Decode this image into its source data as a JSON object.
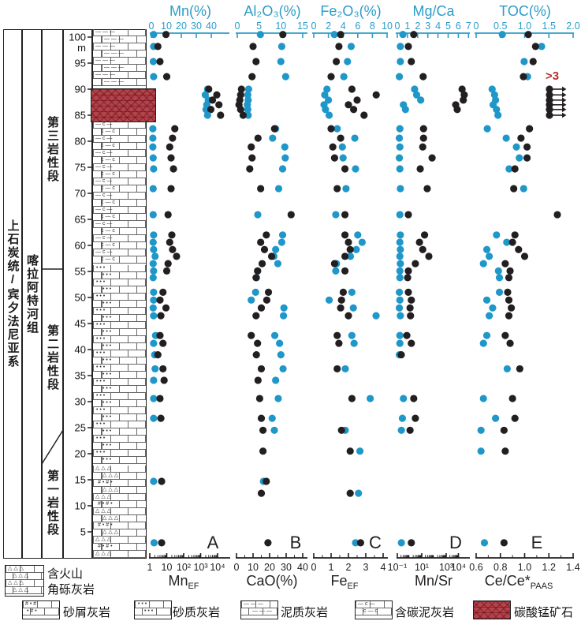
{
  "header": {
    "system": "上石炭统/宾夕法尼亚系",
    "formation": "喀拉阿特河组",
    "members": [
      {
        "label": "第三岩性段"
      },
      {
        "label": "第二岩性段"
      },
      {
        "label": "第一岩性段"
      }
    ],
    "depth_unit": "m",
    "depth_ticks": [
      100,
      95,
      90,
      85,
      80,
      75,
      70,
      65,
      60,
      55,
      50,
      45,
      40,
      35,
      30,
      25,
      20,
      15,
      10,
      5
    ]
  },
  "colors": {
    "axis_cyan": "#2b9dc9",
    "dot_blue": "#1f97c9",
    "dot_black": "#231f20",
    "ore_red": "#b4434b",
    "offscale_red": "#b3322e"
  },
  "annotations": {
    "offscale": ">3"
  },
  "panels": [
    {
      "letter": "A",
      "top": {
        "title": "Mn(%)",
        "ticks": [
          {
            "v": 0,
            "label": "0"
          },
          {
            "v": 10,
            "label": "10"
          },
          {
            "v": 20,
            "label": "20"
          },
          {
            "v": 30,
            "label": "30"
          },
          {
            "v": 40,
            "label": "40"
          }
        ]
      },
      "bottom": {
        "title": "Mn",
        "title_sub": "EF",
        "scale": "log",
        "ticks": [
          {
            "dec": 0,
            "label": "1"
          },
          {
            "dec": 1,
            "label": "10"
          },
          {
            "dec": 2,
            "label": "10²"
          },
          {
            "dec": 3,
            "label": "10³"
          },
          {
            "dec": 4,
            "label": "10⁴"
          }
        ]
      }
    },
    {
      "letter": "B",
      "top": {
        "title": "Al₂O₃(%)",
        "ticks": [
          {
            "v": 0,
            "label": "0"
          },
          {
            "v": 5,
            "label": "5"
          },
          {
            "v": 10,
            "label": "10"
          },
          {
            "v": 15,
            "label": "15"
          }
        ]
      },
      "bottom": {
        "title": "CaO(%)",
        "scale": "linear",
        "ticks": [
          {
            "v": 0,
            "label": "0"
          },
          {
            "v": 10,
            "label": "10"
          },
          {
            "v": 20,
            "label": "20"
          },
          {
            "v": 30,
            "label": "30"
          },
          {
            "v": 40,
            "label": "40"
          }
        ]
      }
    },
    {
      "letter": "C",
      "top": {
        "title": "Fe₂O₃(%)",
        "ticks": [
          {
            "v": 0,
            "label": "0"
          },
          {
            "v": 2,
            "label": "2"
          },
          {
            "v": 4,
            "label": "4"
          },
          {
            "v": 6,
            "label": "6"
          },
          {
            "v": 8,
            "label": "8"
          },
          {
            "v": 10,
            "label": "10"
          }
        ]
      },
      "bottom": {
        "title": "Fe",
        "title_sub": "EF",
        "scale": "linear",
        "ticks": [
          {
            "v": 0,
            "label": "0"
          },
          {
            "v": 1,
            "label": "1"
          },
          {
            "v": 2,
            "label": "2"
          },
          {
            "v": 3,
            "label": "3"
          },
          {
            "v": 4,
            "label": "4"
          }
        ]
      }
    },
    {
      "letter": "D",
      "top": {
        "title": "Mg/Ca",
        "ticks": [
          {
            "v": 0,
            "label": "0"
          },
          {
            "v": 1,
            "label": "1"
          },
          {
            "v": 2,
            "label": "2"
          },
          {
            "v": 3,
            "label": "3"
          },
          {
            "v": 4,
            "label": "4"
          },
          {
            "v": 5,
            "label": "5"
          },
          {
            "v": 6,
            "label": "6"
          },
          {
            "v": 7,
            "label": "7"
          }
        ]
      },
      "bottom": {
        "title": "Mn/Sr",
        "scale": "log",
        "ticks": [
          {
            "dec": 0,
            "label": "10⁻¹"
          },
          {
            "dec": 2,
            "label": "10¹"
          },
          {
            "dec": 4,
            "label": "10³"
          },
          {
            "dec": 5,
            "label": "10⁴"
          }
        ]
      }
    },
    {
      "letter": "E",
      "top": {
        "title": "TOC(%)",
        "ticks": [
          {
            "v": 0,
            "label": "0"
          },
          {
            "v": 0.5,
            "label": "0.5"
          },
          {
            "v": 1.0,
            "label": "1.0"
          },
          {
            "v": 1.5,
            "label": "1.5"
          },
          {
            "v": 2.0,
            "label": "2.0"
          }
        ]
      },
      "bottom": {
        "title": "Ce/Ce*",
        "title_sub": "PAAS",
        "scale": "linear",
        "ticks": [
          {
            "v": 0.6,
            "label": "0.6"
          },
          {
            "v": 0.8,
            "label": "0.8"
          },
          {
            "v": 1.0,
            "label": "1.0"
          },
          {
            "v": 1.2,
            "label": "1.2"
          },
          {
            "v": 1.4,
            "label": "1.4"
          }
        ]
      }
    }
  ],
  "chart_data": {
    "type": "scatter",
    "orientation": "depth-profile",
    "depth_label": "m",
    "depth_range": [
      0,
      102
    ],
    "series_pairs": [
      {
        "panel": "A",
        "top_series": "Mn(%)",
        "top_range": [
          0,
          40
        ],
        "bottom_series": "MnEF",
        "bottom_range": [
          1,
          10000
        ],
        "bottom_scale": "log"
      },
      {
        "panel": "B",
        "top_series": "Al2O3(%)",
        "top_range": [
          0,
          15
        ],
        "bottom_series": "CaO(%)",
        "bottom_range": [
          0,
          40
        ]
      },
      {
        "panel": "C",
        "top_series": "Fe2O3(%)",
        "top_range": [
          0,
          10
        ],
        "bottom_series": "FeEF",
        "bottom_range": [
          0,
          4
        ]
      },
      {
        "panel": "D",
        "top_series": "Mg/Ca",
        "top_range": [
          0,
          7
        ],
        "bottom_series": "Mn/Sr",
        "bottom_range": [
          0.1,
          10000
        ],
        "bottom_scale": "log"
      },
      {
        "panel": "E",
        "top_series": "TOC(%)",
        "top_range": [
          0,
          2
        ],
        "bottom_series": "Ce/Ce*PAAS",
        "bottom_range": [
          0.6,
          1.4
        ]
      }
    ],
    "samples": {
      "depths": [
        100.5,
        98.2,
        95.3,
        92.4,
        90.0,
        88.9,
        87.9,
        87.0,
        86.1,
        85.0,
        82.4,
        80.6,
        78.9,
        76.8,
        74.7,
        70.9,
        65.9,
        62.0,
        60.6,
        59.2,
        57.9,
        56.5,
        55.1,
        53.8,
        51.0,
        49.5,
        48.0,
        46.5,
        42.7,
        41.2,
        39.0,
        36.3,
        34.1,
        30.6,
        26.8,
        24.5,
        20.5,
        14.7,
        12.4,
        2.9
      ],
      "mn": [
        1.5,
        1.5,
        1.3,
        1.5,
        37.5,
        36,
        38,
        37,
        36.5,
        37.5,
        1,
        1,
        1,
        1.2,
        1.5,
        1.2,
        1.2,
        1.5,
        1.2,
        1.5,
        2.5,
        1.2,
        1.5,
        1.2,
        1.5,
        1.5,
        1.2,
        1.5,
        2.8,
        1.5,
        2.2,
        2.5,
        1.5,
        1.5,
        1.5,
        null,
        null,
        1.5,
        null,
        1.8
      ],
      "mn_ef": [
        9,
        3,
        4,
        10,
        3000,
        9000,
        5000,
        12000,
        4000,
        15000,
        30,
        22,
        15,
        18,
        25,
        18,
        12,
        20,
        15,
        22,
        38,
        12,
        10,
        null,
        6,
        4,
        9,
        4.5,
        4,
        6,
        3,
        6,
        7,
        4,
        4.5,
        null,
        null,
        5,
        null,
        5
      ],
      "al2o3": [
        5.3,
        10.2,
        10,
        11.1,
        2.6,
        2.4,
        2.5,
        2.3,
        2.4,
        2.5,
        8.8,
        8.1,
        10.9,
        11,
        10.4,
        9.5,
        4.7,
        10.4,
        10.2,
        8.8,
        8.4,
        9.3,
        4.7,
        4.4,
        4.2,
        3.2,
        10.7,
        10.6,
        8.6,
        9.7,
        10,
        10.5,
        8.8,
        9.4,
        8,
        8.5,
        null,
        6,
        null,
        null
      ],
      "cao": [
        28,
        10,
        11.8,
        9.4,
        3,
        2.5,
        2,
        1.5,
        2.5,
        4,
        23,
        13,
        8.9,
        9.4,
        8,
        14.6,
        33,
        18,
        14.6,
        16.9,
        21.2,
        15.5,
        12.7,
        11.8,
        19.3,
        18.3,
        15,
        11.8,
        8.9,
        12.7,
        12,
        15,
        13,
        14,
        15,
        16,
        16,
        18,
        15,
        19
      ],
      "fe2o3": [
        2.8,
        5.1,
        4.6,
        4.1,
        1.8,
        1.5,
        2,
        1.4,
        1.6,
        2.1,
        3.2,
        5.6,
        3.9,
        4,
        5.7,
        4.4,
        3,
        6,
        6.6,
        5.8,
        5,
        3.1,
        3,
        null,
        5.2,
        2.1,
        5.4,
        8.5,
        5.2,
        5.5,
        null,
        4.3,
        null,
        7.7,
        null,
        4.3,
        6.3,
        null,
        6.1,
        5.7
      ],
      "fe_ef": [
        1.55,
        1.45,
        1.3,
        1,
        2.2,
        3.6,
        2.5,
        2,
        2.3,
        2.9,
        1,
        1.55,
        1.1,
        1.2,
        1.8,
        1.35,
        1.8,
        1.8,
        2,
        2.1,
        1.8,
        1.2,
        1.8,
        null,
        1.7,
        1.6,
        1.55,
        2,
        1.35,
        1.45,
        null,
        1.35,
        null,
        2.2,
        null,
        1.6,
        2.1,
        null,
        2.1,
        2.7
      ],
      "mgca": [
        0.55,
        0.3,
        0.3,
        0.2,
        1.7,
        1.9,
        2.3,
        0.6,
        0.8,
        null,
        0.25,
        0.2,
        0.25,
        0.2,
        0.25,
        0.3,
        0.25,
        0.3,
        0.25,
        0.3,
        0.25,
        0.3,
        0.25,
        0.25,
        0.2,
        0.25,
        0.2,
        0.3,
        0.25,
        0.25,
        0.2,
        null,
        null,
        0.6,
        0.5,
        0.4,
        null,
        null,
        null,
        0.4
      ],
      "mnsr": [
        2.2,
        0.8,
        1.4,
        13,
        20000,
        30000,
        25000,
        6000,
        8000,
        null,
        14,
        14,
        12,
        70,
        7.5,
        28,
        0.8,
        17,
        6.5,
        12,
        38,
        3,
        0.8,
        0.7,
        0.8,
        1.4,
        1.1,
        1.2,
        0.6,
        1.4,
        0.21,
        null,
        null,
        2.2,
        3,
        1.1,
        null,
        null,
        null,
        1.4
      ],
      "toc": [
        0.54,
        1.35,
        0.99,
        1.06,
        0.33,
        0.38,
        0.4,
        0.35,
        0.42,
        0.45,
        0.23,
        0.62,
        0.83,
        0.89,
        0.68,
        0.98,
        null,
        0.42,
        0.63,
        0.22,
        0.27,
        0.15,
        0.46,
        0.48,
        0.48,
        0.22,
        0.34,
        0.27,
        0.22,
        0.15,
        null,
        0.64,
        null,
        0.15,
        0.4,
        0.1,
        0.1,
        null,
        null,
        0.17
      ],
      "ce": [
        1.03,
        1.09,
        1.07,
        0.99,
        null,
        null,
        null,
        null,
        null,
        null,
        1.04,
        0.97,
        1.02,
        1.02,
        0.92,
        0.91,
        1.27,
        0.92,
        0.9,
        0.95,
        1,
        0.84,
        0.88,
        0.87,
        0.86,
        0.87,
        0.89,
        0.87,
        0.84,
        0.88,
        null,
        0.96,
        null,
        0.9,
        0.92,
        0.83,
        0.84,
        null,
        null,
        0.83
      ],
      "ce_offscale": [
        false,
        false,
        false,
        false,
        true,
        true,
        true,
        true,
        true,
        true,
        false,
        false,
        false,
        false,
        false,
        false,
        false,
        false,
        false,
        false,
        false,
        false,
        false,
        false,
        false,
        false,
        false,
        false,
        false,
        false,
        false,
        false,
        false,
        false,
        false,
        false,
        false,
        false,
        false,
        false
      ]
    }
  },
  "lithology": {
    "intervals": [
      {
        "from": 101.5,
        "to": 90.2,
        "pattern": "marl",
        "label": "泥质灰岩"
      },
      {
        "from": 90.2,
        "to": 83.7,
        "pattern": "ore",
        "label": "碳酸锰矿石"
      },
      {
        "from": 83.7,
        "to": 56.2,
        "pattern": "carb_marl",
        "label": "含碳泥灰岩"
      },
      {
        "from": 56.2,
        "to": 17.6,
        "pattern": "sandy",
        "label": "砂质灰岩"
      },
      {
        "from": 17.6,
        "to": 0.3,
        "pattern": "volcanic",
        "label": "含火山角砾灰岩"
      }
    ]
  },
  "legend": {
    "row1": [
      {
        "pattern": "breccia",
        "label_line1": "含火山",
        "label_line2": "角砾灰岩"
      }
    ],
    "row2": [
      {
        "pattern": "sand_debris",
        "label": "砂屑灰岩"
      },
      {
        "pattern": "sandy",
        "label": "砂质灰岩"
      },
      {
        "pattern": "marl",
        "label": "泥质灰岩"
      },
      {
        "pattern": "carb_marl",
        "label": "含碳泥灰岩"
      },
      {
        "pattern": "ore",
        "label": "碳酸锰矿石"
      }
    ]
  }
}
